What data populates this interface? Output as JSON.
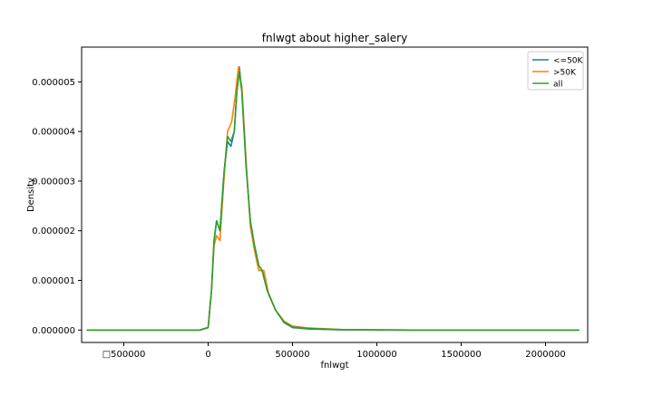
{
  "chart_data": {
    "type": "line",
    "title": "fnlwgt about higher_salery",
    "xlabel": "fnlwgt",
    "ylabel": "Density",
    "xlim": [
      -750000,
      2250000
    ],
    "ylim": [
      -2.5e-07,
      5.7e-06
    ],
    "x_ticks": [
      {
        "value": -500000,
        "label": "□500000"
      },
      {
        "value": 0,
        "label": "0"
      },
      {
        "value": 500000,
        "label": "500000"
      },
      {
        "value": 1000000,
        "label": "1000000"
      },
      {
        "value": 1500000,
        "label": "1500000"
      },
      {
        "value": 2000000,
        "label": "2000000"
      }
    ],
    "y_ticks": [
      {
        "value": 0,
        "label": "0.000000"
      },
      {
        "value": 1e-06,
        "label": "0.000001"
      },
      {
        "value": 2e-06,
        "label": "0.000002"
      },
      {
        "value": 3e-06,
        "label": "0.000003"
      },
      {
        "value": 4e-06,
        "label": "0.000004"
      },
      {
        "value": 5e-06,
        "label": "0.000005"
      }
    ],
    "grid": false,
    "legend_position": "top-right",
    "series": [
      {
        "name": "<=50K",
        "color": "#1f77b4",
        "points": [
          [
            -720000,
            0
          ],
          [
            -300000,
            0
          ],
          [
            -50000,
            0
          ],
          [
            0,
            5e-08
          ],
          [
            20000,
            8e-07
          ],
          [
            35000,
            1.8e-06
          ],
          [
            50000,
            2.2e-06
          ],
          [
            70000,
            2e-06
          ],
          [
            95000,
            3.2e-06
          ],
          [
            115000,
            3.8e-06
          ],
          [
            135000,
            3.7e-06
          ],
          [
            155000,
            4e-06
          ],
          [
            170000,
            4.8e-06
          ],
          [
            185000,
            5.3e-06
          ],
          [
            200000,
            4.8e-06
          ],
          [
            225000,
            3.3e-06
          ],
          [
            250000,
            2.2e-06
          ],
          [
            275000,
            1.7e-06
          ],
          [
            300000,
            1.3e-06
          ],
          [
            320000,
            1.2e-06
          ],
          [
            350000,
            8e-07
          ],
          [
            400000,
            4e-07
          ],
          [
            450000,
            1.5e-07
          ],
          [
            500000,
            5e-08
          ],
          [
            600000,
            2e-08
          ],
          [
            800000,
            5e-09
          ],
          [
            1200000,
            0
          ],
          [
            2200000,
            0
          ]
        ]
      },
      {
        "name": ">50K",
        "color": "#ff7f0e",
        "points": [
          [
            -720000,
            0
          ],
          [
            -300000,
            0
          ],
          [
            -50000,
            0
          ],
          [
            0,
            5e-08
          ],
          [
            20000,
            8e-07
          ],
          [
            35000,
            1.7e-06
          ],
          [
            50000,
            1.9e-06
          ],
          [
            70000,
            1.8e-06
          ],
          [
            95000,
            3.1e-06
          ],
          [
            115000,
            4e-06
          ],
          [
            140000,
            4.2e-06
          ],
          [
            160000,
            4.7e-06
          ],
          [
            180000,
            5.3e-06
          ],
          [
            200000,
            4.9e-06
          ],
          [
            225000,
            3.4e-06
          ],
          [
            250000,
            2.1e-06
          ],
          [
            275000,
            1.6e-06
          ],
          [
            300000,
            1.2e-06
          ],
          [
            330000,
            1.2e-06
          ],
          [
            360000,
            7e-07
          ],
          [
            400000,
            4e-07
          ],
          [
            450000,
            1.8e-07
          ],
          [
            500000,
            8e-08
          ],
          [
            600000,
            4e-08
          ],
          [
            800000,
            1e-08
          ],
          [
            1200000,
            0
          ],
          [
            2200000,
            0
          ]
        ]
      },
      {
        "name": "all",
        "color": "#2ca02c",
        "points": [
          [
            -720000,
            0
          ],
          [
            -300000,
            0
          ],
          [
            -50000,
            0
          ],
          [
            0,
            5e-08
          ],
          [
            20000,
            8e-07
          ],
          [
            35000,
            1.8e-06
          ],
          [
            50000,
            2.2e-06
          ],
          [
            70000,
            2e-06
          ],
          [
            95000,
            3.2e-06
          ],
          [
            115000,
            3.9e-06
          ],
          [
            135000,
            3.8e-06
          ],
          [
            155000,
            4e-06
          ],
          [
            170000,
            4.8e-06
          ],
          [
            185000,
            5.2e-06
          ],
          [
            200000,
            4.8e-06
          ],
          [
            225000,
            3.3e-06
          ],
          [
            250000,
            2.2e-06
          ],
          [
            275000,
            1.7e-06
          ],
          [
            300000,
            1.3e-06
          ],
          [
            320000,
            1.2e-06
          ],
          [
            350000,
            8e-07
          ],
          [
            400000,
            4e-07
          ],
          [
            450000,
            1.6e-07
          ],
          [
            500000,
            6e-08
          ],
          [
            600000,
            3e-08
          ],
          [
            800000,
            6e-09
          ],
          [
            1200000,
            0
          ],
          [
            2200000,
            0
          ]
        ]
      }
    ]
  }
}
